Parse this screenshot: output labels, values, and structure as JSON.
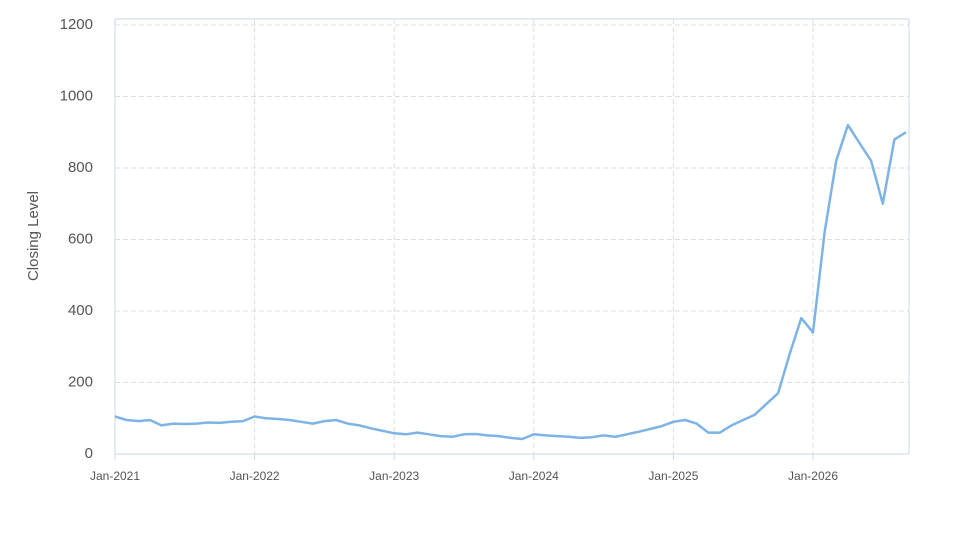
{
  "chart_data": {
    "type": "line",
    "y_label": "Closing Level",
    "x": [
      "Jan-2021",
      "Feb-2021",
      "Mar-2021",
      "Apr-2021",
      "May-2021",
      "Jun-2021",
      "Jul-2021",
      "Aug-2021",
      "Sep-2021",
      "Oct-2021",
      "Nov-2021",
      "Dec-2021",
      "Jan-2022",
      "Feb-2022",
      "Mar-2022",
      "Apr-2022",
      "May-2022",
      "Jun-2022",
      "Jul-2022",
      "Aug-2022",
      "Sep-2022",
      "Oct-2022",
      "Nov-2022",
      "Dec-2022",
      "Jan-2023",
      "Feb-2023",
      "Mar-2023",
      "Apr-2023",
      "May-2023",
      "Jun-2023",
      "Jul-2023",
      "Aug-2023",
      "Sep-2023",
      "Oct-2023",
      "Nov-2023",
      "Dec-2023",
      "Jan-2024",
      "Feb-2024",
      "Mar-2024",
      "Apr-2024",
      "May-2024",
      "Jun-2024",
      "Jul-2024",
      "Aug-2024",
      "Sep-2024",
      "Oct-2024",
      "Nov-2024",
      "Dec-2024",
      "Jan-2025",
      "Feb-2025",
      "Mar-2025",
      "Apr-2025",
      "May-2025",
      "Jun-2025",
      "Jul-2025",
      "Aug-2025",
      "Sep-2025",
      "Oct-2025",
      "Nov-2025",
      "Dec-2025",
      "Jan-2026",
      "Feb-2026",
      "Mar-2026",
      "Apr-2026",
      "May-2026",
      "Jun-2026",
      "Jul-2026",
      "Aug-2026",
      "Sep-2026"
    ],
    "series": [
      {
        "name": "Closing Level",
        "color": "#7eb3e6",
        "values": [
          105,
          95,
          92,
          95,
          80,
          85,
          84,
          85,
          88,
          87,
          90,
          92,
          105,
          100,
          98,
          95,
          90,
          85,
          92,
          95,
          85,
          80,
          72,
          65,
          58,
          55,
          60,
          55,
          50,
          48,
          55,
          56,
          52,
          50,
          45,
          42,
          55,
          52,
          50,
          48,
          45,
          47,
          52,
          48,
          55,
          62,
          70,
          78,
          90,
          95,
          85,
          60,
          60,
          80,
          95,
          110,
          140,
          170,
          280,
          380,
          340,
          620,
          820,
          920,
          870,
          820,
          700,
          880,
          900
        ]
      }
    ],
    "ylim": [
      0,
      1200
    ],
    "yticks": [
      0,
      200,
      400,
      600,
      800,
      1000,
      1200
    ],
    "grid": true
  }
}
